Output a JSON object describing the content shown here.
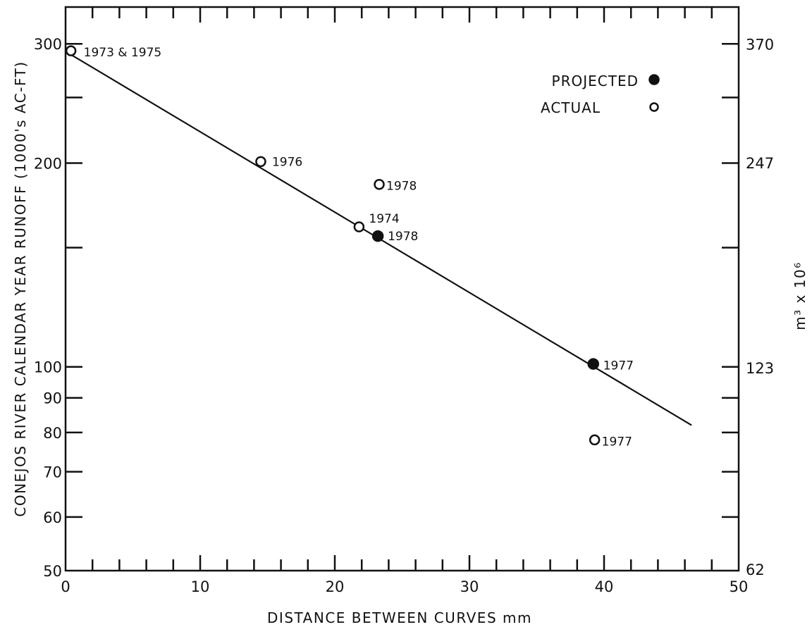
{
  "chart_data": {
    "type": "scatter",
    "xlabel": "DISTANCE BETWEEN CURVES mm",
    "ylabel": "CONEJOS RIVER CALENDAR YEAR RUNOFF (1000's AC-FT)",
    "y2label": "m³ x 10⁶",
    "xlim": [
      0,
      50
    ],
    "ylim": [
      50,
      340
    ],
    "y_scale": "log",
    "grid": false,
    "legend_position": "top-right",
    "x_ticks": [
      "0",
      "10",
      "20",
      "30",
      "40",
      "50"
    ],
    "y_ticks": [
      "50",
      "60",
      "70",
      "80",
      "90",
      "100",
      "200",
      "300"
    ],
    "y2_ticks": [
      "62",
      "123",
      "247",
      "370"
    ],
    "legend": [
      {
        "label": "PROJECTED",
        "marker": "filled"
      },
      {
        "label": "ACTUAL",
        "marker": "open"
      }
    ],
    "series": [
      {
        "name": "ACTUAL",
        "marker": "open",
        "points": [
          {
            "x": 0.4,
            "y": 293,
            "label": "1973 & 1975"
          },
          {
            "x": 14.5,
            "y": 201,
            "label": "1976"
          },
          {
            "x": 21.8,
            "y": 161,
            "label": "1974"
          },
          {
            "x": 23.3,
            "y": 186,
            "label": "1978"
          },
          {
            "x": 39.3,
            "y": 78,
            "label": "1977"
          }
        ]
      },
      {
        "name": "PROJECTED",
        "marker": "filled",
        "points": [
          {
            "x": 23.2,
            "y": 156,
            "label": "1978"
          },
          {
            "x": 39.2,
            "y": 101,
            "label": "1977"
          }
        ]
      }
    ],
    "fit_line": {
      "x": [
        0.3,
        46.5
      ],
      "y": [
        290,
        82
      ]
    }
  }
}
